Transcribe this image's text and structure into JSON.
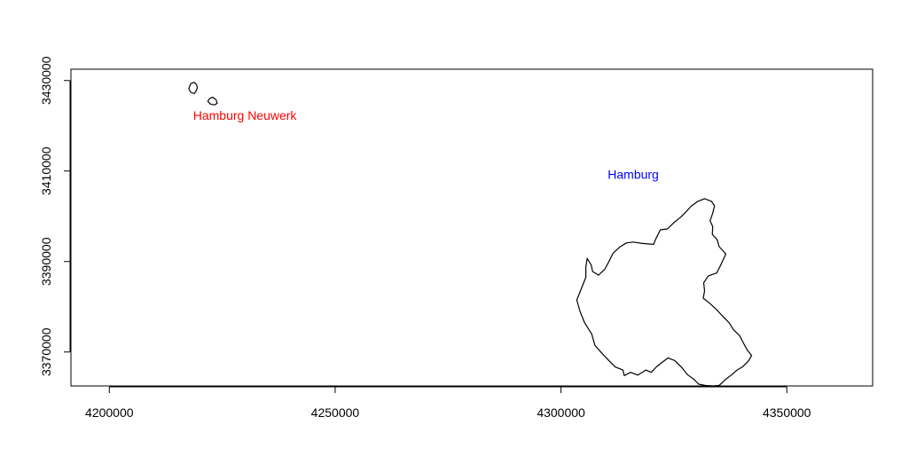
{
  "chart_data": {
    "type": "map",
    "title": "",
    "xlabel": "",
    "ylabel": "",
    "xlim": [
      4191500,
      4369000
    ],
    "ylim": [
      3362500,
      3432500
    ],
    "x_ticks": [
      {
        "value": 4200000,
        "label": "4200000"
      },
      {
        "value": 4250000,
        "label": "4250000"
      },
      {
        "value": 4300000,
        "label": "4300000"
      },
      {
        "value": 4350000,
        "label": "4350000"
      }
    ],
    "y_ticks": [
      {
        "value": 3370000,
        "label": "3370000"
      },
      {
        "value": 3390000,
        "label": "3390000"
      },
      {
        "value": 3410000,
        "label": "3410000"
      },
      {
        "value": 3430000,
        "label": "3430000"
      }
    ],
    "grid": false,
    "labels": [
      {
        "text": "Hamburg Neuwerk",
        "x": 4230000,
        "y": 3422300,
        "color": "#ff0000"
      },
      {
        "text": "Hamburg",
        "x": 4316000,
        "y": 3409300,
        "color": "#0000ff"
      }
    ],
    "shapes": [
      {
        "name": "Hamburg",
        "color": "#000000",
        "points": [
          [
            4305500,
            3386500
          ],
          [
            4304500,
            3384000
          ],
          [
            4303500,
            3381500
          ],
          [
            4304200,
            3379000
          ],
          [
            4305200,
            3376500
          ],
          [
            4306800,
            3374000
          ],
          [
            4307500,
            3371500
          ],
          [
            4309000,
            3369800
          ],
          [
            4310500,
            3368200
          ],
          [
            4312000,
            3366700
          ],
          [
            4313700,
            3366000
          ],
          [
            4314000,
            3364800
          ],
          [
            4315400,
            3365500
          ],
          [
            4317000,
            3364900
          ],
          [
            4318800,
            3366000
          ],
          [
            4320000,
            3365500
          ],
          [
            4321200,
            3366800
          ],
          [
            4322500,
            3367800
          ],
          [
            4323700,
            3368700
          ],
          [
            4325200,
            3368100
          ],
          [
            4326800,
            3366500
          ],
          [
            4328000,
            3365000
          ],
          [
            4329400,
            3364000
          ],
          [
            4330500,
            3362900
          ],
          [
            4332000,
            3362600
          ],
          [
            4333700,
            3362500
          ],
          [
            4335000,
            3362600
          ],
          [
            4336500,
            3364000
          ],
          [
            4337800,
            3365000
          ],
          [
            4339000,
            3366000
          ],
          [
            4340300,
            3366800
          ],
          [
            4341500,
            3368000
          ],
          [
            4342200,
            3369200
          ],
          [
            4341200,
            3370500
          ],
          [
            4340400,
            3372000
          ],
          [
            4339500,
            3373700
          ],
          [
            4338300,
            3374800
          ],
          [
            4337200,
            3376500
          ],
          [
            4335700,
            3378000
          ],
          [
            4334500,
            3379300
          ],
          [
            4333000,
            3380700
          ],
          [
            4331500,
            3381900
          ],
          [
            4331800,
            3383500
          ],
          [
            4331600,
            3385300
          ],
          [
            4332600,
            3386800
          ],
          [
            4334500,
            3387500
          ],
          [
            4335400,
            3389300
          ],
          [
            4336500,
            3391700
          ],
          [
            4335000,
            3393300
          ],
          [
            4334600,
            3394800
          ],
          [
            4333500,
            3396000
          ],
          [
            4333600,
            3397700
          ],
          [
            4333000,
            3399000
          ],
          [
            4333600,
            3400700
          ],
          [
            4334000,
            3402300
          ],
          [
            4333300,
            3403300
          ],
          [
            4331800,
            3403900
          ],
          [
            4330300,
            3403300
          ],
          [
            4328800,
            3402200
          ],
          [
            4327500,
            3400800
          ],
          [
            4326500,
            3399800
          ],
          [
            4325000,
            3398600
          ],
          [
            4323600,
            3397200
          ],
          [
            4322000,
            3397000
          ],
          [
            4321000,
            3395000
          ],
          [
            4320500,
            3393800
          ],
          [
            4318000,
            3394000
          ],
          [
            4316000,
            3394300
          ],
          [
            4314500,
            3394100
          ],
          [
            4313000,
            3393200
          ],
          [
            4311500,
            3391800
          ],
          [
            4310500,
            3389800
          ],
          [
            4309700,
            3388300
          ],
          [
            4308300,
            3387000
          ],
          [
            4307000,
            3387800
          ],
          [
            4306700,
            3389200
          ],
          [
            4305800,
            3390700
          ],
          [
            4305500,
            3388800
          ],
          [
            4305500,
            3386500
          ]
        ]
      },
      {
        "name": "Hamburg Neuwerk",
        "color": "#000000",
        "points": [
          [
            4217600,
            3428200
          ],
          [
            4218000,
            3427400
          ],
          [
            4218800,
            3427100
          ],
          [
            4219200,
            3427700
          ],
          [
            4219500,
            3428400
          ],
          [
            4219300,
            3429100
          ],
          [
            4218800,
            3429600
          ],
          [
            4218000,
            3429300
          ],
          [
            4217600,
            3428200
          ]
        ]
      },
      {
        "name": "Hamburg Neuwerk",
        "color": "#000000",
        "points": [
          [
            4221800,
            3425400
          ],
          [
            4222400,
            3424800
          ],
          [
            4223300,
            3424600
          ],
          [
            4223900,
            3425000
          ],
          [
            4223600,
            3425800
          ],
          [
            4222900,
            3426300
          ],
          [
            4222200,
            3426000
          ],
          [
            4221800,
            3425400
          ]
        ]
      }
    ]
  }
}
